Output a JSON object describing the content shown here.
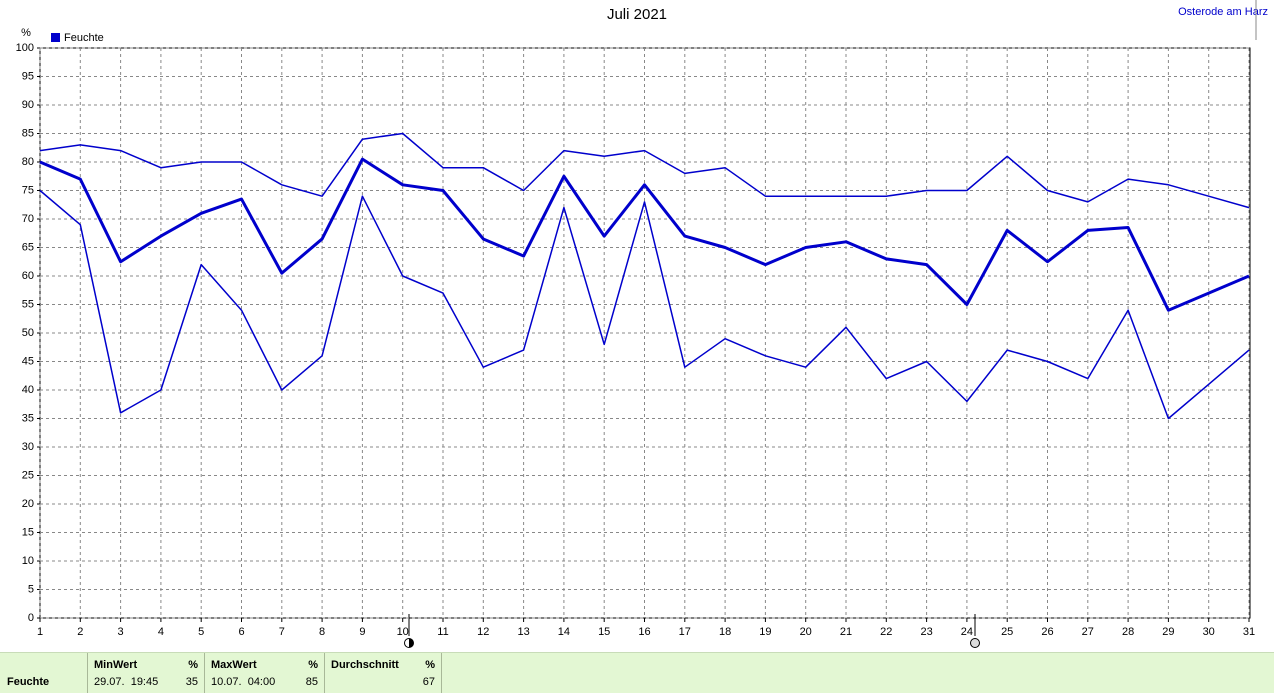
{
  "chart_data": {
    "type": "line",
    "title": "Juli 2021",
    "location": "Osterode am Harz",
    "y_label": "%",
    "legend_label": "Feuchte",
    "x": [
      1,
      2,
      3,
      4,
      5,
      6,
      7,
      8,
      9,
      10,
      11,
      12,
      13,
      14,
      15,
      16,
      17,
      18,
      19,
      20,
      21,
      22,
      23,
      24,
      25,
      26,
      27,
      28,
      29,
      30,
      31
    ],
    "xlim": [
      1,
      31
    ],
    "xticks": [
      1,
      2,
      3,
      4,
      5,
      6,
      7,
      8,
      9,
      10,
      11,
      12,
      13,
      14,
      15,
      16,
      17,
      18,
      19,
      20,
      21,
      22,
      23,
      24,
      25,
      26,
      27,
      28,
      29,
      30,
      31
    ],
    "ylim": [
      0,
      100
    ],
    "yticks": [
      0,
      5,
      10,
      15,
      20,
      25,
      30,
      35,
      40,
      45,
      50,
      55,
      60,
      65,
      70,
      75,
      80,
      85,
      90,
      95,
      100
    ],
    "grid": true,
    "series": [
      {
        "color": "#0000cc",
        "width": 1.5,
        "values": [
          82,
          83,
          82,
          79,
          80,
          80,
          76,
          74,
          84,
          85,
          79,
          79,
          75,
          82,
          81,
          82,
          78,
          79,
          74,
          74,
          74,
          74,
          75,
          75,
          81,
          75,
          73,
          77,
          76,
          74,
          72
        ]
      },
      {
        "color": "#0000cc",
        "width": 3,
        "values": [
          80,
          77,
          62.5,
          67,
          71,
          73.5,
          60.5,
          66.5,
          80.5,
          76,
          75,
          66.5,
          63.5,
          77.5,
          67,
          76,
          67,
          65,
          62,
          65,
          66,
          63,
          62,
          55,
          68,
          62.5,
          68,
          68.5,
          54,
          57,
          60
        ]
      },
      {
        "color": "#0000cc",
        "width": 1.5,
        "values": [
          75,
          69,
          36,
          40,
          62,
          54,
          40,
          46,
          74,
          60,
          57,
          44,
          47,
          72,
          48,
          73,
          44,
          49,
          46,
          44,
          51,
          42,
          45,
          38,
          47,
          45,
          42,
          54,
          35,
          41,
          47
        ]
      }
    ]
  },
  "summary": {
    "row_label": "Feuchte",
    "columns": [
      {
        "header": "MinWert",
        "unit": "%",
        "time": "29.07.  19:45",
        "value": 35
      },
      {
        "header": "MaxWert",
        "unit": "%",
        "time": "10.07.  04:00",
        "value": 85
      },
      {
        "header": "Durchschnitt",
        "unit": "%",
        "value": 67
      }
    ]
  }
}
